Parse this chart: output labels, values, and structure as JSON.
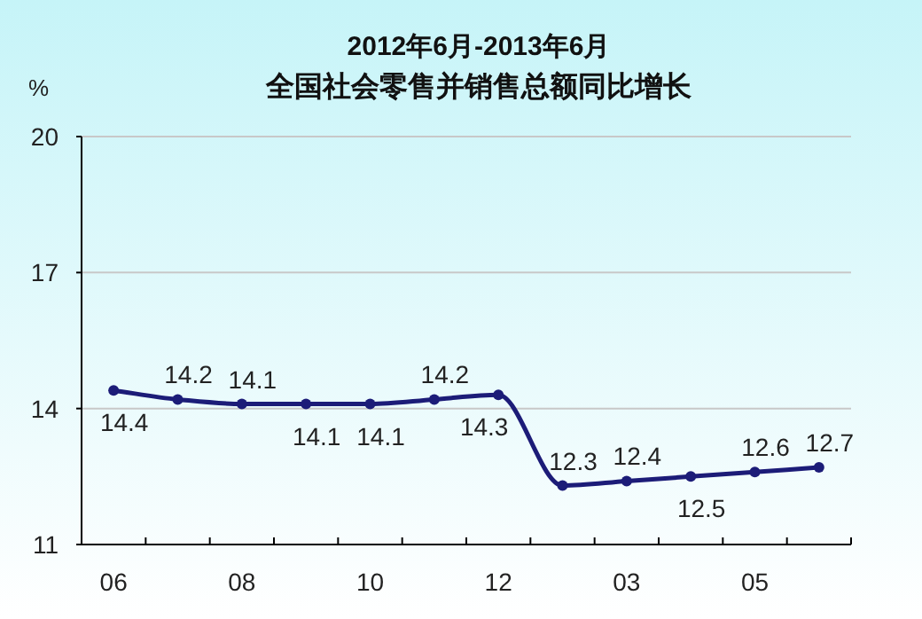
{
  "chart_data": {
    "type": "line",
    "title": "2012年6月-2013年6月",
    "subtitle": "全国社会零售并销售总额同比增长",
    "ylabel": "%",
    "categories": [
      "06",
      null,
      "08",
      null,
      "10",
      null,
      "12",
      null,
      "03",
      null,
      "05",
      null
    ],
    "series": [
      {
        "color": "#1c1c78",
        "values": [
          14.4,
          14.2,
          14.1,
          14.1,
          14.1,
          14.2,
          14.3,
          12.3,
          12.4,
          12.5,
          12.6,
          12.7
        ]
      }
    ],
    "ylim": [
      11,
      20
    ],
    "yticks": [
      11,
      14,
      17,
      20
    ],
    "grid": "y",
    "marker": "circle",
    "line_style": "solid",
    "data_labels": true
  }
}
